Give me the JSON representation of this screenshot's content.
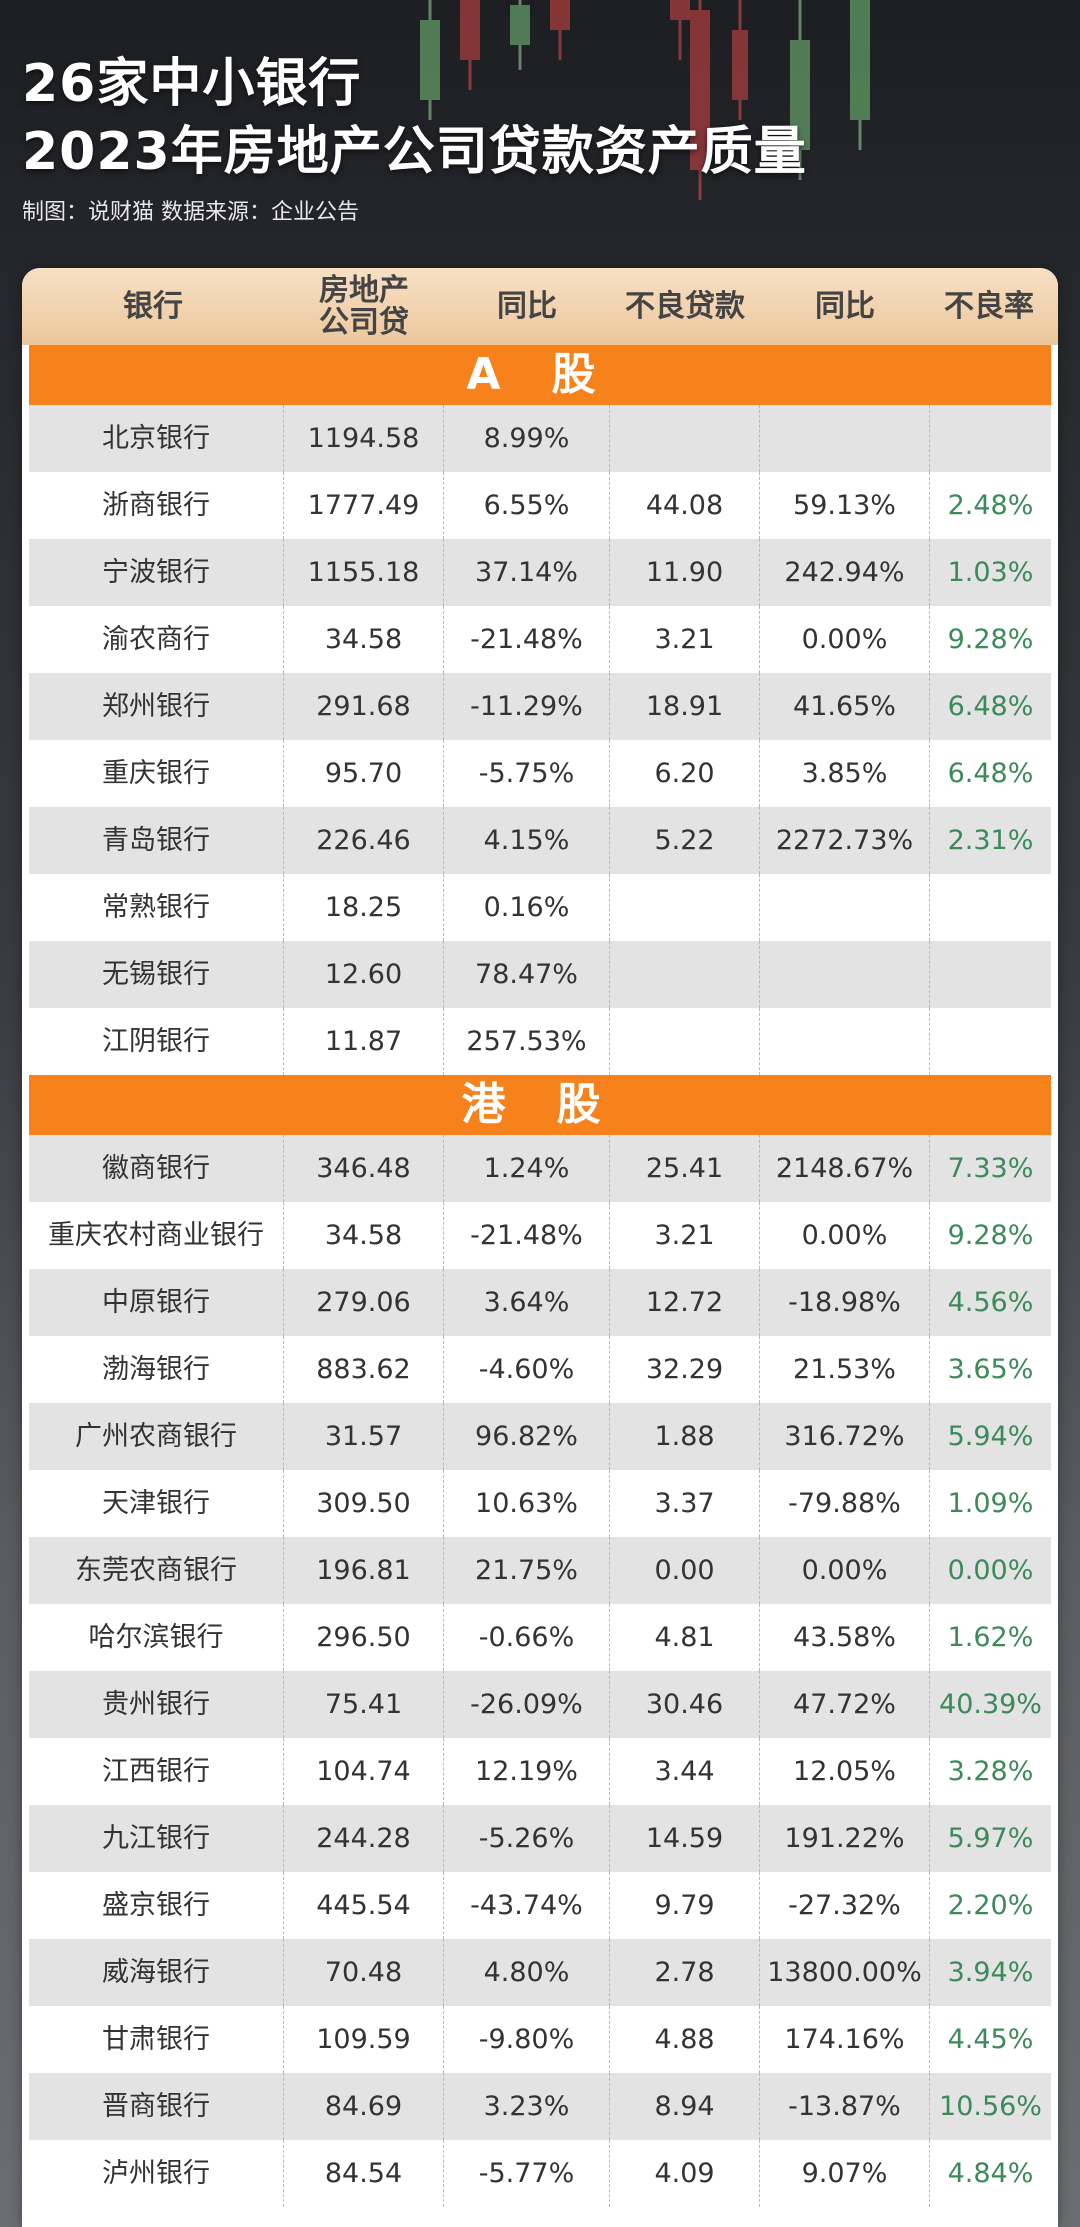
{
  "title": {
    "line1": "26家中小银行",
    "line2": "2023年房地产公司贷款资产质量",
    "credit": "制图：说财猫  数据来源：企业公告"
  },
  "colors": {
    "accent": "#f7821c",
    "rate_green": "#3c8a5a",
    "header_tan": "#ecc79d"
  },
  "table": {
    "headers": [
      "银行",
      "房地产公司贷",
      "同比",
      "不良贷款",
      "同比",
      "不良率"
    ],
    "sections": [
      {
        "label": "A 股",
        "rows": [
          [
            "北京银行",
            "1194.58",
            "8.99%",
            "",
            "",
            ""
          ],
          [
            "浙商银行",
            "1777.49",
            "6.55%",
            "44.08",
            "59.13%",
            "2.48%"
          ],
          [
            "宁波银行",
            "1155.18",
            "37.14%",
            "11.90",
            "242.94%",
            "1.03%"
          ],
          [
            "渝农商行",
            "34.58",
            "-21.48%",
            "3.21",
            "0.00%",
            "9.28%"
          ],
          [
            "郑州银行",
            "291.68",
            "-11.29%",
            "18.91",
            "41.65%",
            "6.48%"
          ],
          [
            "重庆银行",
            "95.70",
            "-5.75%",
            "6.20",
            "3.85%",
            "6.48%"
          ],
          [
            "青岛银行",
            "226.46",
            "4.15%",
            "5.22",
            "2272.73%",
            "2.31%"
          ],
          [
            "常熟银行",
            "18.25",
            "0.16%",
            "",
            "",
            ""
          ],
          [
            "无锡银行",
            "12.60",
            "78.47%",
            "",
            "",
            ""
          ],
          [
            "江阴银行",
            "11.87",
            "257.53%",
            "",
            "",
            ""
          ]
        ]
      },
      {
        "label": "港 股",
        "rows": [
          [
            "徽商银行",
            "346.48",
            "1.24%",
            "25.41",
            "2148.67%",
            "7.33%"
          ],
          [
            "重庆农村商业银行",
            "34.58",
            "-21.48%",
            "3.21",
            "0.00%",
            "9.28%"
          ],
          [
            "中原银行",
            "279.06",
            "3.64%",
            "12.72",
            "-18.98%",
            "4.56%"
          ],
          [
            "渤海银行",
            "883.62",
            "-4.60%",
            "32.29",
            "21.53%",
            "3.65%"
          ],
          [
            "广州农商银行",
            "31.57",
            "96.82%",
            "1.88",
            "316.72%",
            "5.94%"
          ],
          [
            "天津银行",
            "309.50",
            "10.63%",
            "3.37",
            "-79.88%",
            "1.09%"
          ],
          [
            "东莞农商银行",
            "196.81",
            "21.75%",
            "0.00",
            "0.00%",
            "0.00%"
          ],
          [
            "哈尔滨银行",
            "296.50",
            "-0.66%",
            "4.81",
            "43.58%",
            "1.62%"
          ],
          [
            "贵州银行",
            "75.41",
            "-26.09%",
            "30.46",
            "47.72%",
            "40.39%"
          ],
          [
            "江西银行",
            "104.74",
            "12.19%",
            "3.44",
            "12.05%",
            "3.28%"
          ],
          [
            "九江银行",
            "244.28",
            "-5.26%",
            "14.59",
            "191.22%",
            "5.97%"
          ],
          [
            "盛京银行",
            "445.54",
            "-43.74%",
            "9.79",
            "-27.32%",
            "2.20%"
          ],
          [
            "威海银行",
            "70.48",
            "4.80%",
            "2.78",
            "13800.00%",
            "3.94%"
          ],
          [
            "甘肃银行",
            "109.59",
            "-9.80%",
            "4.88",
            "174.16%",
            "4.45%"
          ],
          [
            "晋商银行",
            "84.69",
            "3.23%",
            "8.94",
            "-13.87%",
            "10.56%"
          ],
          [
            "泸州银行",
            "84.54",
            "-5.77%",
            "4.09",
            "9.07%",
            "4.84%"
          ]
        ]
      }
    ]
  }
}
